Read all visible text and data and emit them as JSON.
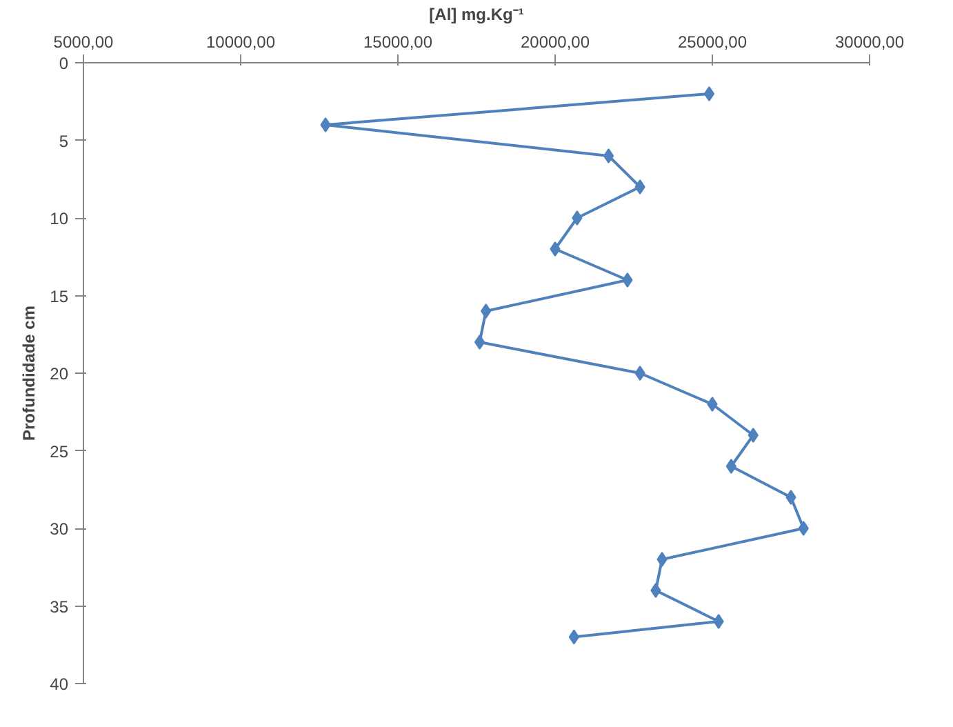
{
  "chart_data": {
    "type": "line",
    "xlabel": "[Al] mg.Kg⁻¹",
    "ylabel": "Profundidade cm",
    "x": [
      24900,
      12700,
      21700,
      22700,
      20700,
      20000,
      22300,
      17800,
      17600,
      22700,
      25000,
      26300,
      25600,
      27500,
      27900,
      23400,
      23200,
      25200,
      20600
    ],
    "values": [
      2,
      4,
      6,
      8,
      10,
      12,
      14,
      16,
      18,
      20,
      22,
      24,
      26,
      28,
      30,
      32,
      34,
      36,
      37
    ],
    "color": "#4f81bd",
    "marker": "diamond",
    "line_style": "solid",
    "grid": false,
    "xlim": [
      5000,
      30000
    ],
    "ylim": [
      40,
      0
    ],
    "xticks": [
      {
        "value": 5000,
        "label": "5000,00"
      },
      {
        "value": 10000,
        "label": "10000,00"
      },
      {
        "value": 15000,
        "label": "15000,00"
      },
      {
        "value": 20000,
        "label": "20000,00"
      },
      {
        "value": 25000,
        "label": "25000,00"
      },
      {
        "value": 30000,
        "label": "30000,00"
      }
    ],
    "yticks": [
      0,
      5,
      10,
      15,
      20,
      25,
      30,
      35,
      40
    ]
  }
}
